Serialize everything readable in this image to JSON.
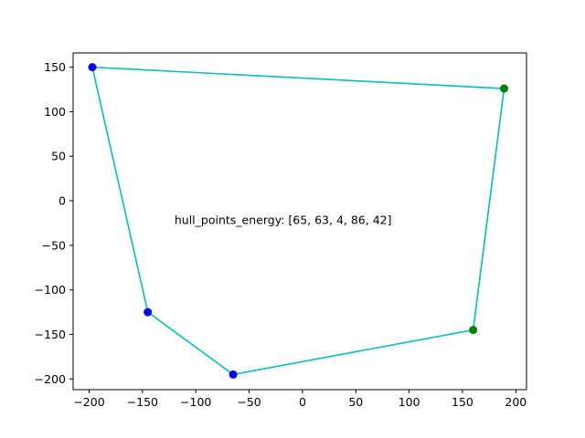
{
  "chart_data": {
    "type": "scatter",
    "title": "",
    "xlabel": "",
    "ylabel": "",
    "xlim": [
      -215,
      210
    ],
    "ylim": [
      -212,
      166
    ],
    "grid": false,
    "legend": "none",
    "x_ticks": [
      -200,
      -150,
      -100,
      -50,
      0,
      50,
      100,
      150,
      200
    ],
    "y_ticks": [
      -200,
      -150,
      -100,
      -50,
      0,
      50,
      100,
      150
    ],
    "hull_color": "#00bfbf",
    "points": [
      {
        "x": -197,
        "y": 150,
        "color": "#0000ff"
      },
      {
        "x": 189,
        "y": 126,
        "color": "#008000"
      },
      {
        "x": 160,
        "y": -145,
        "color": "#008000"
      },
      {
        "x": -65,
        "y": -195,
        "color": "#0000ff"
      },
      {
        "x": -145,
        "y": -125,
        "color": "#0000ff"
      }
    ],
    "hull_order": [
      0,
      1,
      2,
      3,
      4,
      0
    ],
    "annotation": {
      "text": "hull_points_energy: [65, 63, 4, 86, 42]",
      "x": -120,
      "y": -22
    }
  }
}
